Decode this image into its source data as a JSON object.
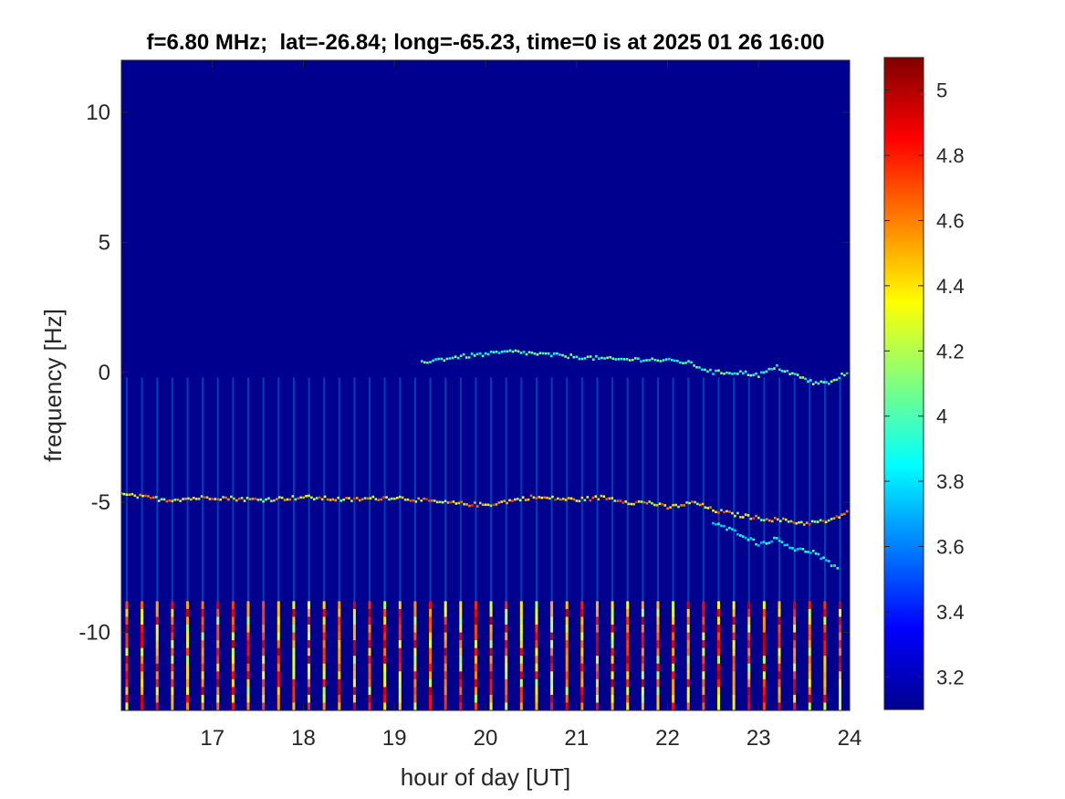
{
  "chart_data": {
    "type": "heatmap",
    "title": "f=6.80 MHz;  lat=-26.84; long=-65.23, time=0 is at 2025 01 26 16:00",
    "xlabel": "hour of day [UT]",
    "ylabel": "frequency [Hz]",
    "xlim": [
      16.0,
      24.0
    ],
    "ylim": [
      -13.0,
      12.0
    ],
    "xticks": [
      17,
      18,
      19,
      20,
      21,
      22,
      23,
      24
    ],
    "yticks": [
      -10,
      -5,
      0,
      5,
      10
    ],
    "grid": false,
    "colormap": "jet",
    "colorbar": {
      "position": "right",
      "clim": [
        3.1,
        5.1
      ],
      "ticks": [
        3.2,
        3.4,
        3.6,
        3.8,
        4,
        4.2,
        4.4,
        4.6,
        4.8,
        5
      ]
    },
    "background_value": 3.1,
    "vertical_streaks": {
      "x_start": 16.06,
      "x_spacing": 0.1667,
      "x_end": 23.95,
      "y_low": -13.0,
      "y_high": -8.8,
      "peak_value": 5.0,
      "weak_y_range": [
        -9.0,
        -0.2
      ],
      "weak_peak_value": 3.7
    },
    "traces": [
      {
        "name": "",
        "x": [
          16.0,
          16.5,
          17.0,
          17.5,
          18.0,
          18.5,
          19.0,
          19.5,
          20.0,
          20.5,
          21.0,
          21.3,
          21.6,
          21.8,
          22.0,
          22.3,
          22.5,
          22.8,
          23.0,
          23.3,
          23.5,
          23.8,
          24.0
        ],
        "y": [
          -4.7,
          -4.9,
          -4.8,
          -4.9,
          -4.8,
          -4.9,
          -4.8,
          -5.0,
          -5.1,
          -4.8,
          -4.9,
          -4.8,
          -5.0,
          -5.0,
          -5.2,
          -5.0,
          -5.3,
          -5.5,
          -5.6,
          -5.7,
          -5.8,
          -5.7,
          -5.3
        ],
        "peak_value": 4.8
      },
      {
        "name": "",
        "x": [
          22.5,
          22.8,
          23.0,
          23.2,
          23.4,
          23.6,
          23.8,
          23.9
        ],
        "y": [
          -5.8,
          -6.2,
          -6.6,
          -6.4,
          -6.8,
          -6.9,
          -7.4,
          -7.7
        ],
        "peak_value": 4.0
      },
      {
        "name": "",
        "x": [
          19.3,
          19.7,
          20.0,
          20.3,
          20.6,
          21.0,
          21.4,
          21.8,
          22.2,
          22.5,
          22.8,
          23.0,
          23.2,
          23.4,
          23.6,
          23.8,
          24.0
        ],
        "y": [
          0.4,
          0.6,
          0.7,
          0.8,
          0.7,
          0.6,
          0.5,
          0.5,
          0.4,
          0.0,
          0.0,
          -0.1,
          0.2,
          -0.1,
          -0.4,
          -0.4,
          0.1
        ],
        "peak_value": 4.2
      }
    ]
  }
}
